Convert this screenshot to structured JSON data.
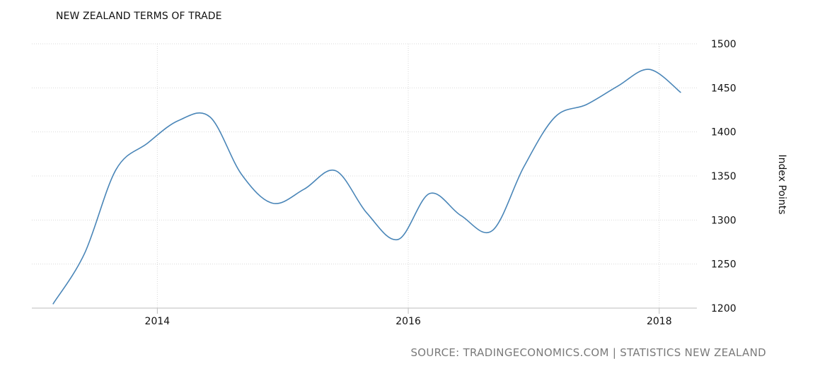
{
  "chart_data": {
    "type": "line",
    "title": "NEW ZEALAND TERMS OF TRADE",
    "ylabel": "Index Points",
    "xlabel": "",
    "x_ticks": [
      "2014",
      "2016",
      "2018"
    ],
    "y_ticks": [
      1200,
      1250,
      1300,
      1350,
      1400,
      1450,
      1500
    ],
    "ylim": [
      1200,
      1500
    ],
    "xlim": [
      2013.0,
      2018.3
    ],
    "grid": true,
    "legend": "none",
    "series": [
      {
        "color": "#4a86b8",
        "x": [
          2013.17,
          2013.42,
          2013.67,
          2013.92,
          2014.17,
          2014.42,
          2014.67,
          2014.92,
          2015.17,
          2015.42,
          2015.67,
          2015.92,
          2016.17,
          2016.42,
          2016.67,
          2016.92,
          2017.17,
          2017.42,
          2017.67,
          2017.92,
          2018.17
        ],
        "values": [
          1205,
          1262,
          1357,
          1387,
          1413,
          1417,
          1352,
          1319,
          1335,
          1356,
          1308,
          1278,
          1330,
          1305,
          1288,
          1360,
          1417,
          1431,
          1452,
          1471,
          1445
        ]
      }
    ]
  },
  "source_text": "SOURCE: TRADINGECONOMICS.COM | STATISTICS NEW ZEALAND"
}
